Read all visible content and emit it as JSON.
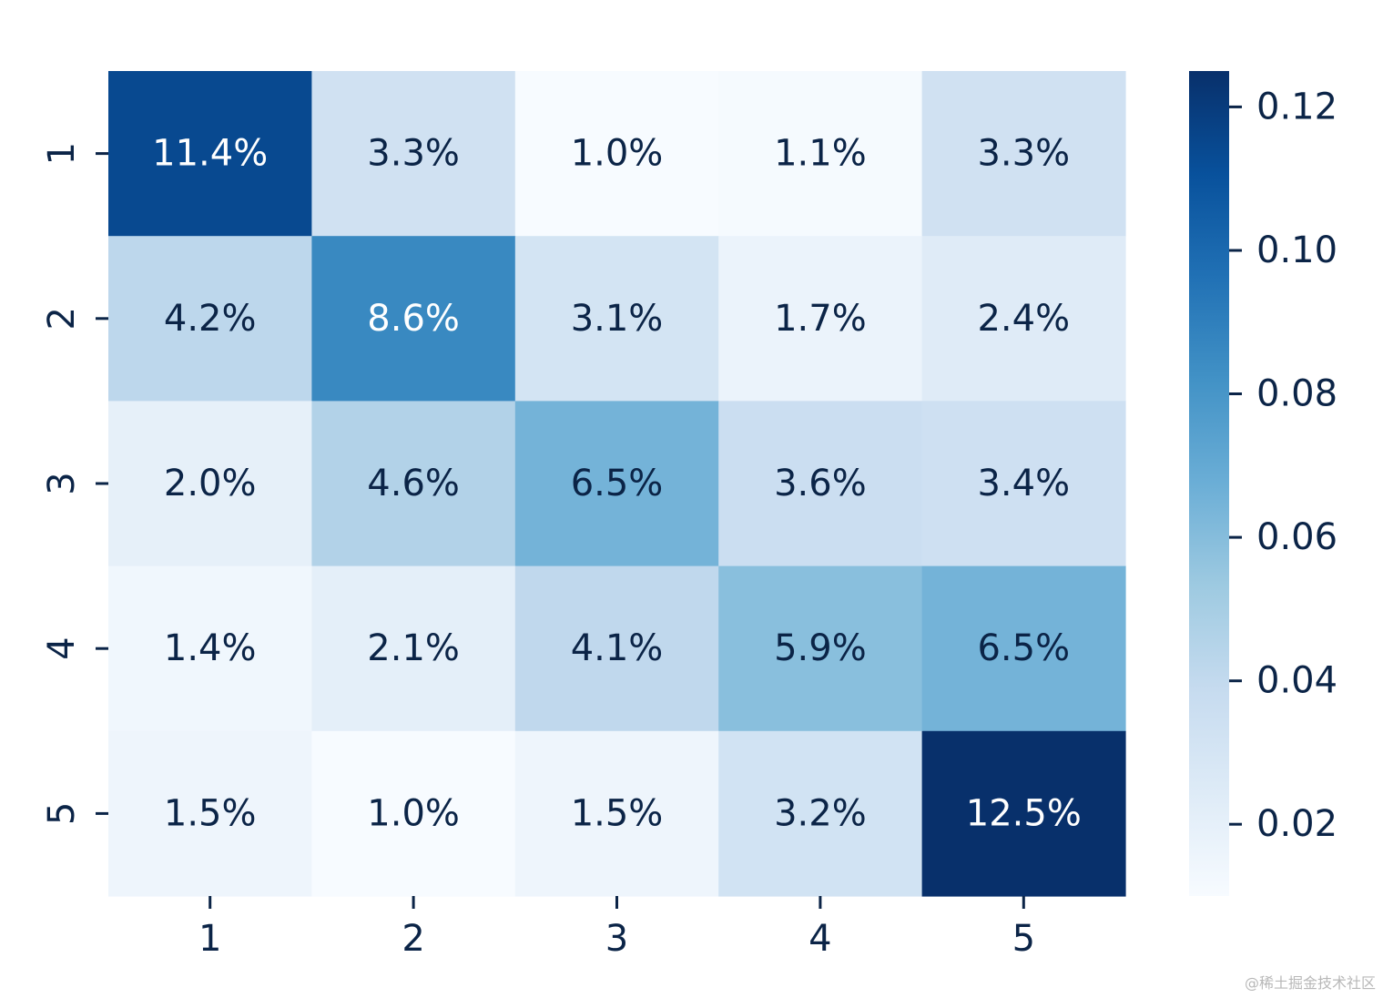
{
  "chart_data": {
    "type": "heatmap",
    "x_categories": [
      "1",
      "2",
      "3",
      "4",
      "5"
    ],
    "y_categories": [
      "1",
      "2",
      "3",
      "4",
      "5"
    ],
    "values": [
      [
        0.114,
        0.033,
        0.01,
        0.011,
        0.033
      ],
      [
        0.042,
        0.086,
        0.031,
        0.017,
        0.024
      ],
      [
        0.02,
        0.046,
        0.065,
        0.036,
        0.034
      ],
      [
        0.014,
        0.021,
        0.041,
        0.059,
        0.065
      ],
      [
        0.015,
        0.01,
        0.015,
        0.032,
        0.125
      ]
    ],
    "annotations": [
      [
        "11.4%",
        "3.3%",
        "1.0%",
        "1.1%",
        "3.3%"
      ],
      [
        "4.2%",
        "8.6%",
        "3.1%",
        "1.7%",
        "2.4%"
      ],
      [
        "2.0%",
        "4.6%",
        "6.5%",
        "3.6%",
        "3.4%"
      ],
      [
        "1.4%",
        "2.1%",
        "4.1%",
        "5.9%",
        "6.5%"
      ],
      [
        "1.5%",
        "1.0%",
        "1.5%",
        "3.2%",
        "12.5%"
      ]
    ],
    "colormap": "Blues",
    "colorbar": {
      "range": [
        0.01,
        0.125
      ],
      "ticks": [
        0.02,
        0.04,
        0.06,
        0.08,
        0.1,
        0.12
      ],
      "tick_labels": [
        "0.02",
        "0.04",
        "0.06",
        "0.08",
        "0.10",
        "0.12"
      ]
    },
    "title": "",
    "xlabel": "",
    "ylabel": ""
  },
  "watermark": "@稀土掘金技术社区"
}
